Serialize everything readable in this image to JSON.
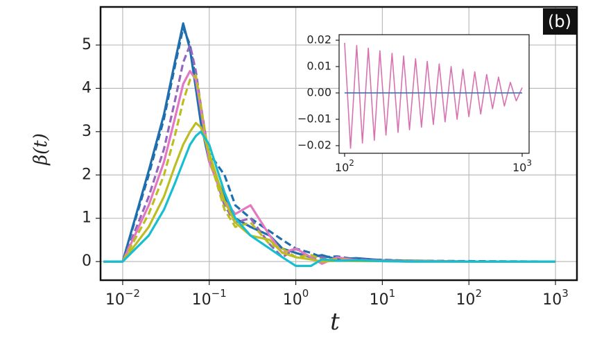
{
  "chart_data": [
    {
      "type": "line",
      "xscale": "log",
      "grid": true,
      "xlabel": "t",
      "ylabel": "β(t)",
      "annotation": "(b)",
      "xlim": [
        0.00555,
        1770
      ],
      "ylim": [
        -0.43,
        5.88
      ],
      "xticks": [
        {
          "value": 0.01,
          "label": "10",
          "exponent": "−2"
        },
        {
          "value": 0.1,
          "label": "10",
          "exponent": "−1"
        },
        {
          "value": 1,
          "label": "10",
          "exponent": "0"
        },
        {
          "value": 10,
          "label": "10",
          "exponent": "1"
        },
        {
          "value": 100,
          "label": "10",
          "exponent": "2"
        },
        {
          "value": 1000,
          "label": "10",
          "exponent": "3"
        }
      ],
      "yticks": [
        0,
        1,
        2,
        3,
        4,
        5
      ],
      "x": [
        0.006,
        0.01,
        0.02,
        0.03,
        0.04,
        0.05,
        0.06,
        0.07,
        0.08,
        0.1,
        0.15,
        0.2,
        0.3,
        0.5,
        0.7,
        1,
        1.5,
        2,
        3,
        5,
        10,
        20,
        100,
        1000
      ],
      "series": [
        {
          "color": "#1f6fae",
          "style": "solid",
          "values": [
            0,
            0,
            2.1,
            3.4,
            4.6,
            5.5,
            4.9,
            4.0,
            3.2,
            2.3,
            1.5,
            1.0,
            0.8,
            0.6,
            0.3,
            0.2,
            0.1,
            0.15,
            0.05,
            0.08,
            0.03,
            0.02,
            0,
            0
          ]
        },
        {
          "color": "#1f6fae",
          "style": "dashed",
          "values": [
            0,
            0,
            2.0,
            3.3,
            4.5,
            5.4,
            5.0,
            4.2,
            3.4,
            2.5,
            2.0,
            1.3,
            1.0,
            0.7,
            0.5,
            0.3,
            0.2,
            0.1,
            0.12,
            0.05,
            0.04,
            0.02,
            0.01,
            0
          ]
        },
        {
          "color": "#9467bd",
          "style": "dashed",
          "values": [
            0,
            0,
            1.5,
            2.6,
            3.7,
            4.6,
            5.0,
            4.4,
            3.6,
            2.4,
            1.3,
            0.9,
            1.0,
            0.4,
            0.1,
            0.3,
            0.05,
            0.1,
            0.02,
            0.05,
            0.02,
            0.01,
            0,
            0
          ]
        },
        {
          "color": "#e377c2",
          "style": "solid",
          "values": [
            0,
            0,
            1.3,
            2.3,
            3.3,
            4.1,
            4.4,
            4.2,
            3.5,
            2.3,
            1.4,
            1.1,
            1.3,
            0.6,
            0.2,
            0.3,
            0.1,
            -0.05,
            0.1,
            0.03,
            0.02,
            0.01,
            0,
            0
          ]
        },
        {
          "color": "#bcbd22",
          "style": "dashed",
          "values": [
            0,
            0,
            1.1,
            2.0,
            2.9,
            3.7,
            4.2,
            4.3,
            3.6,
            2.4,
            1.2,
            0.8,
            0.9,
            0.4,
            0.3,
            0.1,
            0.15,
            0.05,
            0.05,
            0.02,
            0.01,
            0.01,
            0,
            0
          ]
        },
        {
          "color": "#bcbd22",
          "style": "solid",
          "values": [
            0,
            0,
            0.8,
            1.5,
            2.2,
            2.7,
            3.0,
            3.2,
            3.1,
            2.5,
            1.4,
            0.9,
            0.6,
            0.5,
            0.2,
            0.1,
            0.05,
            0,
            0.02,
            0.01,
            0.01,
            0,
            0,
            0
          ]
        },
        {
          "color": "#17becf",
          "style": "solid",
          "values": [
            0,
            0,
            0.6,
            1.2,
            1.8,
            2.3,
            2.7,
            2.9,
            3.0,
            2.7,
            1.6,
            1.0,
            0.6,
            0.3,
            0.1,
            -0.1,
            -0.1,
            0.05,
            0.02,
            0.03,
            0.01,
            0,
            0,
            0
          ]
        }
      ]
    },
    {
      "type": "line",
      "xscale": "log",
      "grid": false,
      "xlim": [
        93.1,
        1094
      ],
      "ylim": [
        -0.0229,
        0.0221
      ],
      "xticks": [
        {
          "value": 100,
          "label": "10",
          "exponent": "2"
        },
        {
          "value": 1000,
          "label": "10",
          "exponent": "3"
        }
      ],
      "yticks": [
        {
          "value": 0.02,
          "label": "0.02"
        },
        {
          "value": 0.01,
          "label": "0.01"
        },
        {
          "value": 0,
          "label": "0.00"
        },
        {
          "value": -0.01,
          "label": "−0.01"
        },
        {
          "value": -0.02,
          "label": "−0.02"
        }
      ],
      "series": [
        {
          "color": "#d771b0",
          "style": "solid",
          "x": [
            100,
            108,
            117,
            126,
            136,
            147,
            158,
            171,
            185,
            200,
            215,
            232,
            251,
            271,
            292,
            316,
            341,
            368,
            398,
            430,
            464,
            501,
            541,
            584,
            631,
            681,
            736,
            794,
            858,
            926,
            1000
          ],
          "values": [
            0.019,
            -0.021,
            0.018,
            -0.019,
            0.017,
            -0.018,
            0.016,
            -0.016,
            0.015,
            -0.015,
            0.014,
            -0.014,
            0.013,
            -0.013,
            0.012,
            -0.012,
            0.011,
            -0.011,
            0.01,
            -0.01,
            0.009,
            -0.009,
            0.008,
            -0.008,
            0.007,
            -0.006,
            0.006,
            -0.005,
            0.004,
            -0.003,
            0.002
          ]
        },
        {
          "color": "#3b6fc0",
          "style": "solid",
          "x": [
            100,
            1000
          ],
          "values": [
            0,
            0
          ]
        }
      ]
    }
  ]
}
